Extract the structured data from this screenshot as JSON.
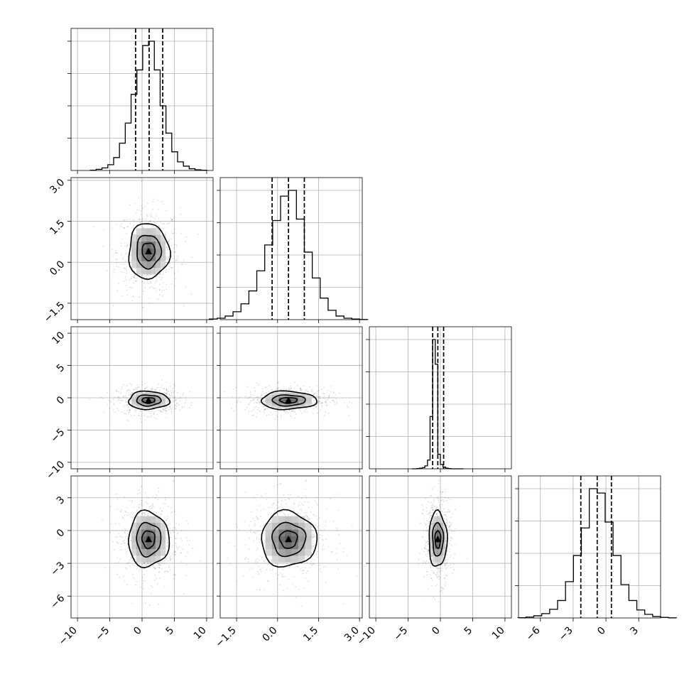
{
  "chart_data": {
    "type": "corner",
    "grid": true,
    "quantiles": [
      0.16,
      0.5,
      0.84
    ],
    "params": [
      {
        "ticks": [
          -10,
          -5,
          0,
          5,
          10
        ],
        "tick_labels": [
          "−10",
          "−5",
          "0",
          "5",
          "10"
        ],
        "range": [
          -11,
          11
        ],
        "mean": 1.0,
        "std": 1.8,
        "quantile_values": [
          -1.0,
          1.1,
          3.2
        ]
      },
      {
        "ticks": [
          -1.5,
          0.0,
          1.5,
          3.0
        ],
        "tick_labels": [
          "−1.5",
          "0.0",
          "1.5",
          "3.0"
        ],
        "range": [
          -2.1,
          3.1
        ],
        "mean": 0.4,
        "std": 0.58,
        "quantile_values": [
          -0.2,
          0.4,
          0.98
        ]
      },
      {
        "ticks": [
          -10,
          -5,
          0,
          5,
          10
        ],
        "tick_labels": [
          "−10",
          "−5",
          "0",
          "5",
          "10"
        ],
        "range": [
          -11,
          11
        ],
        "mean": -0.4,
        "std": 0.8,
        "quantile_values": [
          -1.2,
          -0.4,
          0.5
        ]
      },
      {
        "ticks": [
          -6,
          -3,
          0,
          3
        ],
        "tick_labels": [
          "−6",
          "−3",
          "0",
          "3"
        ],
        "range": [
          -8.0,
          5.0
        ],
        "mean": -0.8,
        "std": 1.45,
        "quantile_values": [
          -2.3,
          -0.8,
          0.5
        ]
      }
    ],
    "histograms": [
      {
        "bins": 20,
        "counts": [
          2,
          8,
          18,
          40,
          90,
          190,
          330,
          530,
          700,
          870,
          900,
          700,
          450,
          260,
          130,
          60,
          30,
          12,
          5,
          2
        ]
      },
      {
        "bins": 20,
        "counts": [
          4,
          10,
          25,
          55,
          110,
          200,
          340,
          520,
          690,
          860,
          900,
          700,
          470,
          290,
          150,
          65,
          25,
          10,
          4,
          1
        ]
      },
      {
        "bins": 20,
        "counts": [
          0,
          0,
          2,
          4,
          8,
          20,
          60,
          360,
          890,
          720,
          100,
          30,
          12,
          5,
          2,
          0,
          0,
          0,
          0,
          0
        ]
      },
      {
        "bins": 20,
        "counts": [
          2,
          6,
          15,
          30,
          60,
          120,
          250,
          430,
          620,
          890,
          860,
          660,
          430,
          230,
          120,
          55,
          25,
          10,
          4,
          1
        ]
      }
    ]
  }
}
